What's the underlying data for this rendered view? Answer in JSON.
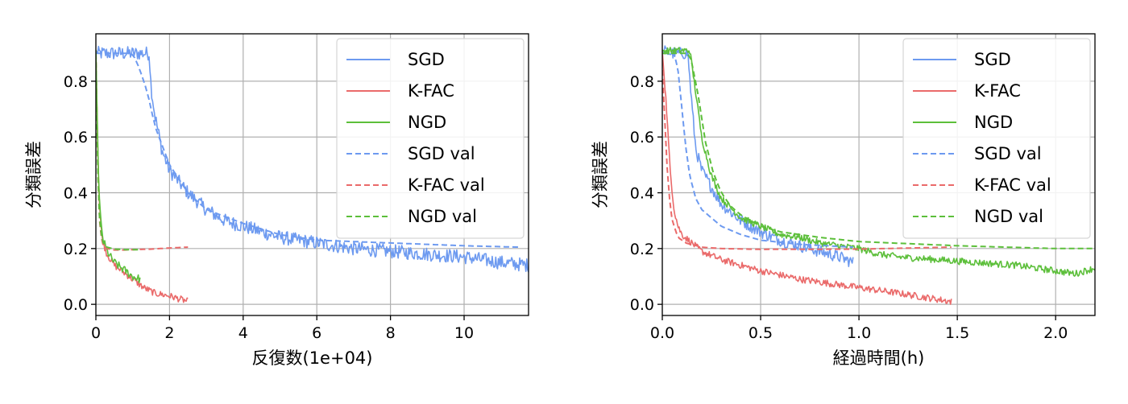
{
  "colors": {
    "sgd": "#6d9af0",
    "kfac": "#ea6a6a",
    "ngd": "#5cbf3a",
    "grid": "#b0b0b0",
    "axis": "#000000"
  },
  "chart_data": [
    {
      "type": "line",
      "xlabel": "反復数(1e+04)",
      "ylabel": "分類誤差",
      "xlim": [
        0,
        11.75
      ],
      "ylim": [
        -0.04,
        0.97
      ],
      "xticks": [
        0,
        2,
        4,
        6,
        8,
        10
      ],
      "xtick_labels": [
        "0",
        "2",
        "4",
        "6",
        "8",
        "10"
      ],
      "yticks": [
        0.0,
        0.2,
        0.4,
        0.6,
        0.8
      ],
      "ytick_labels": [
        "0.0",
        "0.2",
        "0.4",
        "0.6",
        "0.8"
      ],
      "grid": true,
      "legend_position": "top-right",
      "series": [
        {
          "name": "SGD",
          "style": "solid",
          "color_key": "sgd",
          "x": [
            0,
            0.05,
            0.2,
            0.5,
            1.0,
            1.45,
            1.5,
            1.6,
            1.8,
            2.0,
            2.5,
            3.0,
            3.5,
            4.0,
            5.0,
            6.0,
            7.0,
            8.0,
            9.0,
            10.0,
            11.0,
            11.75
          ],
          "y": [
            0.91,
            0.9,
            0.9,
            0.9,
            0.9,
            0.9,
            0.78,
            0.68,
            0.55,
            0.48,
            0.4,
            0.34,
            0.3,
            0.28,
            0.24,
            0.22,
            0.2,
            0.19,
            0.18,
            0.17,
            0.15,
            0.14
          ],
          "noise": 0.025
        },
        {
          "name": "K-FAC",
          "style": "solid",
          "color_key": "kfac",
          "x": [
            0,
            0.03,
            0.06,
            0.1,
            0.15,
            0.2,
            0.3,
            0.5,
            0.8,
            1.0,
            1.3,
            1.6,
            2.0,
            2.5
          ],
          "y": [
            0.91,
            0.7,
            0.5,
            0.35,
            0.26,
            0.22,
            0.18,
            0.14,
            0.11,
            0.09,
            0.06,
            0.04,
            0.03,
            0.01
          ],
          "noise": 0.012
        },
        {
          "name": "NGD",
          "style": "solid",
          "color_key": "ngd",
          "x": [
            0,
            0.03,
            0.06,
            0.1,
            0.15,
            0.2,
            0.3,
            0.5,
            0.8,
            1.0,
            1.2
          ],
          "y": [
            0.91,
            0.72,
            0.52,
            0.36,
            0.27,
            0.23,
            0.19,
            0.15,
            0.12,
            0.1,
            0.09
          ],
          "noise": 0.015
        },
        {
          "name": "SGD val",
          "style": "dashed",
          "color_key": "sgd",
          "x": [
            0,
            0.3,
            1.0,
            1.2,
            1.4,
            1.6,
            2.0,
            2.5,
            3.0,
            4.0,
            5.0,
            6.0,
            8.0,
            10.0,
            11.5
          ],
          "y": [
            0.9,
            0.9,
            0.9,
            0.84,
            0.76,
            0.64,
            0.5,
            0.4,
            0.34,
            0.29,
            0.25,
            0.23,
            0.22,
            0.21,
            0.205
          ]
        },
        {
          "name": "K-FAC val",
          "style": "dashed",
          "color_key": "kfac",
          "x": [
            0,
            0.03,
            0.06,
            0.1,
            0.15,
            0.2,
            0.3,
            0.5,
            0.8,
            1.0,
            1.5,
            2.0,
            2.5
          ],
          "y": [
            0.9,
            0.65,
            0.45,
            0.3,
            0.24,
            0.21,
            0.2,
            0.195,
            0.195,
            0.196,
            0.198,
            0.202,
            0.205
          ]
        },
        {
          "name": "NGD val",
          "style": "dashed",
          "color_key": "ngd",
          "x": [
            0,
            0.03,
            0.06,
            0.1,
            0.15,
            0.2,
            0.3,
            0.5,
            0.8,
            1.2
          ],
          "y": [
            0.9,
            0.65,
            0.45,
            0.31,
            0.25,
            0.22,
            0.205,
            0.198,
            0.196,
            0.196
          ]
        }
      ]
    },
    {
      "type": "line",
      "xlabel": "経過時間(h)",
      "ylabel": "分類誤差",
      "xlim": [
        0,
        2.2
      ],
      "ylim": [
        -0.04,
        0.97
      ],
      "xticks": [
        0.0,
        0.5,
        1.0,
        1.5,
        2.0
      ],
      "xtick_labels": [
        "0.0",
        "0.5",
        "1.0",
        "1.5",
        "2.0"
      ],
      "yticks": [
        0.0,
        0.2,
        0.4,
        0.6,
        0.8
      ],
      "ytick_labels": [
        "0.0",
        "0.2",
        "0.4",
        "0.6",
        "0.8"
      ],
      "grid": true,
      "legend_position": "top-right",
      "series": [
        {
          "name": "SGD",
          "style": "solid",
          "color_key": "sgd",
          "x": [
            0,
            0.05,
            0.1,
            0.13,
            0.15,
            0.17,
            0.2,
            0.25,
            0.3,
            0.4,
            0.5,
            0.6,
            0.7,
            0.8,
            0.9,
            0.97
          ],
          "y": [
            0.91,
            0.9,
            0.9,
            0.9,
            0.72,
            0.56,
            0.48,
            0.42,
            0.36,
            0.3,
            0.26,
            0.23,
            0.21,
            0.19,
            0.17,
            0.15
          ],
          "noise": 0.022
        },
        {
          "name": "K-FAC",
          "style": "solid",
          "color_key": "kfac",
          "x": [
            0,
            0.02,
            0.04,
            0.06,
            0.08,
            0.1,
            0.15,
            0.2,
            0.3,
            0.5,
            0.7,
            1.0,
            1.2,
            1.47
          ],
          "y": [
            0.91,
            0.72,
            0.48,
            0.34,
            0.28,
            0.25,
            0.22,
            0.19,
            0.16,
            0.12,
            0.09,
            0.06,
            0.04,
            0.01
          ],
          "noise": 0.012
        },
        {
          "name": "NGD",
          "style": "solid",
          "color_key": "ngd",
          "x": [
            0,
            0.1,
            0.14,
            0.17,
            0.2,
            0.25,
            0.3,
            0.4,
            0.5,
            0.6,
            0.7,
            0.8,
            0.9,
            1.0,
            1.1,
            1.2,
            1.4,
            1.6,
            1.8,
            2.0,
            2.1,
            2.2
          ],
          "y": [
            0.91,
            0.91,
            0.91,
            0.76,
            0.6,
            0.46,
            0.38,
            0.31,
            0.28,
            0.25,
            0.24,
            0.22,
            0.21,
            0.2,
            0.18,
            0.17,
            0.16,
            0.15,
            0.14,
            0.12,
            0.11,
            0.13
          ],
          "noise": 0.012
        },
        {
          "name": "SGD val",
          "style": "dashed",
          "color_key": "sgd",
          "x": [
            0,
            0.06,
            0.08,
            0.1,
            0.12,
            0.14,
            0.17,
            0.2,
            0.3,
            0.4,
            0.5,
            0.7,
            0.97
          ],
          "y": [
            0.9,
            0.9,
            0.84,
            0.7,
            0.56,
            0.46,
            0.38,
            0.34,
            0.28,
            0.25,
            0.23,
            0.215,
            0.205
          ]
        },
        {
          "name": "K-FAC val",
          "style": "dashed",
          "color_key": "kfac",
          "x": [
            0,
            0.01,
            0.02,
            0.03,
            0.05,
            0.08,
            0.12,
            0.2,
            0.3,
            0.5,
            1.0,
            1.47
          ],
          "y": [
            0.84,
            0.7,
            0.55,
            0.42,
            0.3,
            0.24,
            0.22,
            0.205,
            0.2,
            0.197,
            0.198,
            0.205
          ]
        },
        {
          "name": "NGD val",
          "style": "dashed",
          "color_key": "ngd",
          "x": [
            0,
            0.1,
            0.14,
            0.18,
            0.22,
            0.26,
            0.3,
            0.35,
            0.4,
            0.5,
            0.6,
            0.8,
            1.0,
            1.5,
            2.0,
            2.2
          ],
          "y": [
            0.9,
            0.9,
            0.9,
            0.76,
            0.58,
            0.47,
            0.4,
            0.35,
            0.32,
            0.28,
            0.26,
            0.24,
            0.225,
            0.21,
            0.2,
            0.2
          ]
        }
      ]
    }
  ]
}
